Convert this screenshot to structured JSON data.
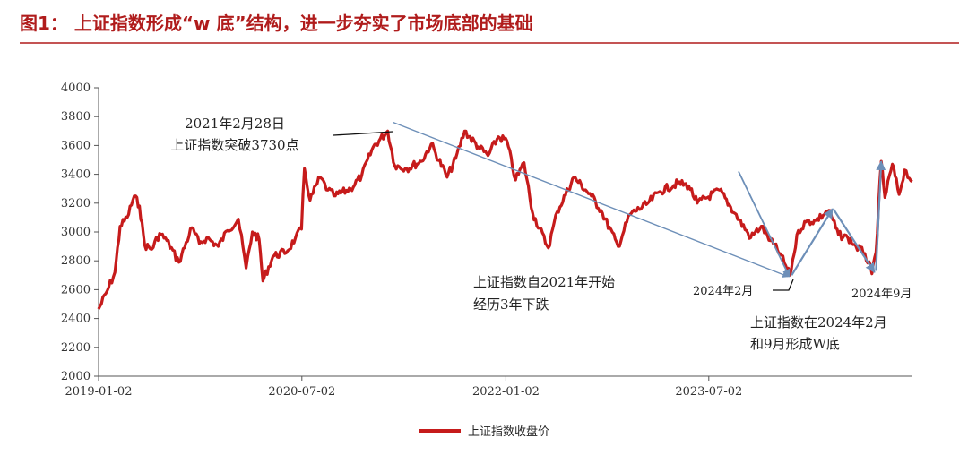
{
  "figure_title": "图1： 上证指数形成“w 底”结构，进一步夯实了市场底部的基础",
  "colors": {
    "title": "#b01c1c",
    "series": "#c61b1b",
    "arrow": "#6d8fb8",
    "axis": "#555555"
  },
  "chart_data": {
    "type": "line",
    "title": "",
    "xlabel": "",
    "ylabel": "",
    "ylim": [
      2000,
      4000
    ],
    "yticks": [
      2000,
      2200,
      2400,
      2600,
      2800,
      3000,
      3200,
      3400,
      3600,
      3800,
      4000
    ],
    "xlim": [
      "2019-01-02",
      "2024-12-31"
    ],
    "xticks": [
      "2019-01-02",
      "2020-07-02",
      "2022-01-02",
      "2023-07-02"
    ],
    "grid": false,
    "legend": "bottom-center",
    "series": [
      {
        "name": "上证指数收盘价",
        "x": [
          "2019-01-02",
          "2019-01-25",
          "2019-02-15",
          "2019-03-01",
          "2019-03-20",
          "2019-04-08",
          "2019-04-22",
          "2019-05-06",
          "2019-05-25",
          "2019-06-15",
          "2019-07-05",
          "2019-08-06",
          "2019-09-10",
          "2019-09-30",
          "2019-10-20",
          "2019-11-20",
          "2019-12-15",
          "2020-01-13",
          "2020-02-03",
          "2020-02-20",
          "2020-03-09",
          "2020-03-19",
          "2020-04-15",
          "2020-05-25",
          "2020-06-15",
          "2020-07-01",
          "2020-07-09",
          "2020-07-24",
          "2020-08-20",
          "2020-09-10",
          "2020-09-30",
          "2020-11-10",
          "2020-12-10",
          "2021-01-10",
          "2021-02-18",
          "2021-03-09",
          "2021-04-10",
          "2021-05-20",
          "2021-06-15",
          "2021-07-28",
          "2021-08-20",
          "2021-09-13",
          "2021-10-20",
          "2021-11-15",
          "2021-12-13",
          "2022-01-05",
          "2022-01-28",
          "2022-02-20",
          "2022-03-15",
          "2022-04-26",
          "2022-05-20",
          "2022-07-04",
          "2022-08-20",
          "2022-09-15",
          "2022-10-31",
          "2022-12-01",
          "2023-01-15",
          "2023-02-20",
          "2023-04-10",
          "2023-05-09",
          "2023-06-01",
          "2023-07-31",
          "2023-09-10",
          "2023-10-23",
          "2023-11-20",
          "2023-12-15",
          "2024-01-10",
          "2024-02-05",
          "2024-02-28",
          "2024-03-20",
          "2024-04-15",
          "2024-05-20",
          "2024-06-15",
          "2024-07-10",
          "2024-08-01",
          "2024-08-25",
          "2024-09-13",
          "2024-09-24",
          "2024-10-08",
          "2024-10-18",
          "2024-11-07",
          "2024-11-25",
          "2024-12-10",
          "2024-12-31"
        ],
        "y": [
          2465,
          2590,
          2720,
          3040,
          3100,
          3250,
          3180,
          2910,
          2880,
          2990,
          2940,
          2790,
          3030,
          2920,
          2960,
          2900,
          3010,
          3090,
          2750,
          3000,
          2950,
          2660,
          2830,
          2870,
          2960,
          3020,
          3440,
          3220,
          3380,
          3290,
          3250,
          3300,
          3390,
          3590,
          3700,
          3460,
          3440,
          3490,
          3610,
          3380,
          3510,
          3700,
          3590,
          3530,
          3660,
          3630,
          3360,
          3480,
          3130,
          2890,
          3140,
          3380,
          3250,
          3150,
          2900,
          3120,
          3190,
          3280,
          3340,
          3320,
          3200,
          3290,
          3130,
          2960,
          3040,
          2940,
          2850,
          2700,
          3010,
          3070,
          3080,
          3150,
          2980,
          2960,
          2900,
          2850,
          2710,
          2860,
          3490,
          3240,
          3470,
          3260,
          3430,
          3350
        ]
      }
    ],
    "annotations": [
      {
        "id": "peak",
        "lines": [
          "2021年2月28日",
          "上证指数突破3730点"
        ]
      },
      {
        "id": "decline",
        "lines": [
          "上证指数自2021年开始",
          "经历3年下跌"
        ]
      },
      {
        "id": "feb2024",
        "lines": [
          "2024年2月"
        ]
      },
      {
        "id": "sep2024",
        "lines": [
          "2024年9月"
        ]
      },
      {
        "id": "wbottom",
        "lines": [
          "上证指数在2024年2月",
          "和9月形成W底"
        ]
      }
    ]
  }
}
